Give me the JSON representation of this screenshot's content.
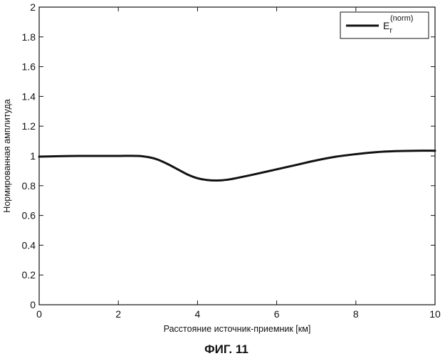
{
  "chart_data": {
    "type": "line",
    "xlabel": "Расстояние источник-приемник [км]",
    "ylabel": "Нормированная амплитуда",
    "xlim": [
      0,
      10
    ],
    "ylim": [
      0,
      2
    ],
    "x_ticks": [
      "0",
      "2",
      "4",
      "6",
      "8",
      "10"
    ],
    "y_ticks": [
      "0",
      "0.2",
      "0.4",
      "0.6",
      "0.8",
      "1",
      "1.2",
      "1.4",
      "1.6",
      "1.8",
      "2"
    ],
    "grid": false,
    "legend_position": "top-right",
    "series": [
      {
        "name": "E_r^(norm)",
        "legend_main": "E",
        "legend_sub": "r",
        "legend_sup": "(norm)",
        "color": "#111111",
        "x": [
          0,
          0.5,
          1,
          1.5,
          2,
          2.5,
          2.8,
          3,
          3.25,
          3.5,
          3.75,
          4,
          4.25,
          4.5,
          4.75,
          5,
          5.5,
          6,
          6.5,
          7,
          7.5,
          8,
          8.5,
          9,
          9.5,
          10
        ],
        "y": [
          0.995,
          0.998,
          1.0,
          1.0,
          1.0,
          1.0,
          0.99,
          0.975,
          0.945,
          0.91,
          0.875,
          0.85,
          0.838,
          0.835,
          0.84,
          0.852,
          0.88,
          0.91,
          0.94,
          0.97,
          0.995,
          1.012,
          1.025,
          1.032,
          1.035,
          1.035
        ]
      }
    ]
  },
  "caption": "ФИГ. 11"
}
